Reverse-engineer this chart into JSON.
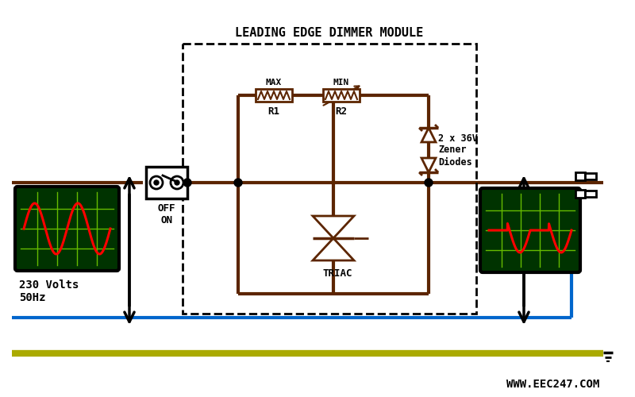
{
  "title": "LEADING EDGE DIMMER MODULE",
  "bg_color": "#ffffff",
  "wire_brown": "#5C2500",
  "wire_blue": "#0066CC",
  "wire_yellow_green": "#AAAA00",
  "wire_black": "#000000",
  "grid_color": "#66BB00",
  "osc_bg": "#003300",
  "text_color": "#000000",
  "website": "WWW.EEC247.COM",
  "label_230v": "230 Volts\n50Hz",
  "label_r1": "R1",
  "label_r2": "R2",
  "label_max": "MAX",
  "label_min": "MIN",
  "label_triac": "TRIAC",
  "label_zener": "2 x 36V\nZener\nDiodes",
  "label_switch": "OFF\nON"
}
